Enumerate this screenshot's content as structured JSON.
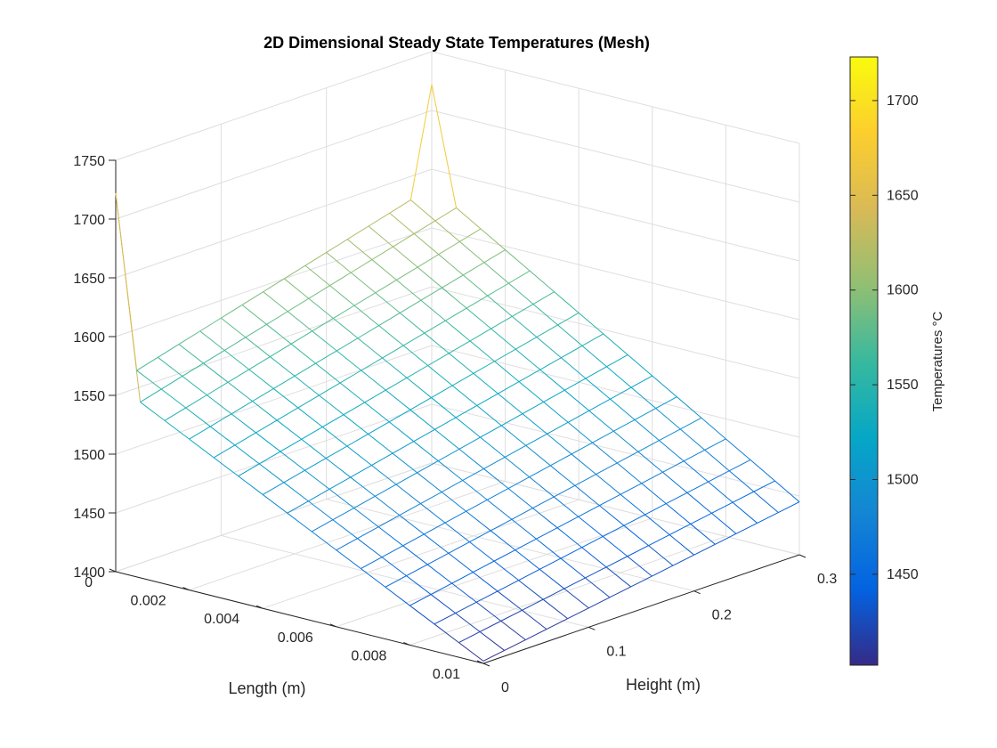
{
  "chart_data": {
    "type": "mesh",
    "title": "2D Dimensional Steady State Temperatures (Mesh)",
    "xlabel": "Length (m)",
    "ylabel": "Height (m)",
    "zlabel": "",
    "x_range": [
      0,
      0.01
    ],
    "y_range": [
      0,
      0.3
    ],
    "zlim": [
      1400,
      1750
    ],
    "x_ticks": [
      "0",
      "0.002",
      "0.004",
      "0.006",
      "0.008",
      "0.01"
    ],
    "y_ticks": [
      "0",
      "0.1",
      "0.2",
      "0.3"
    ],
    "z_ticks": [
      "1400",
      "1450",
      "1500",
      "1550",
      "1600",
      "1650",
      "1700",
      "1750"
    ],
    "grid": true,
    "colormap": "parula",
    "colorbar": {
      "label": "Temperatures °C",
      "range": [
        1402,
        1723
      ],
      "ticks": [
        "1450",
        "1500",
        "1550",
        "1600",
        "1650",
        "1700"
      ]
    },
    "mesh": {
      "length_nodes": 16,
      "height_nodes": 16,
      "surface_at_height_0": {
        "length_0": 1560,
        "length_0.01": 1402
      },
      "surface_at_height_0.3": {
        "length_0": 1635,
        "length_0.01": 1445
      },
      "corner_spikes": [
        {
          "length": 0,
          "height": 0,
          "temperature": 1722
        },
        {
          "length": 0,
          "height": 0.3,
          "temperature": 1722
        }
      ]
    }
  },
  "colors": {
    "background": "#ffffff",
    "axis": "#262626",
    "grid": "#dedede"
  }
}
